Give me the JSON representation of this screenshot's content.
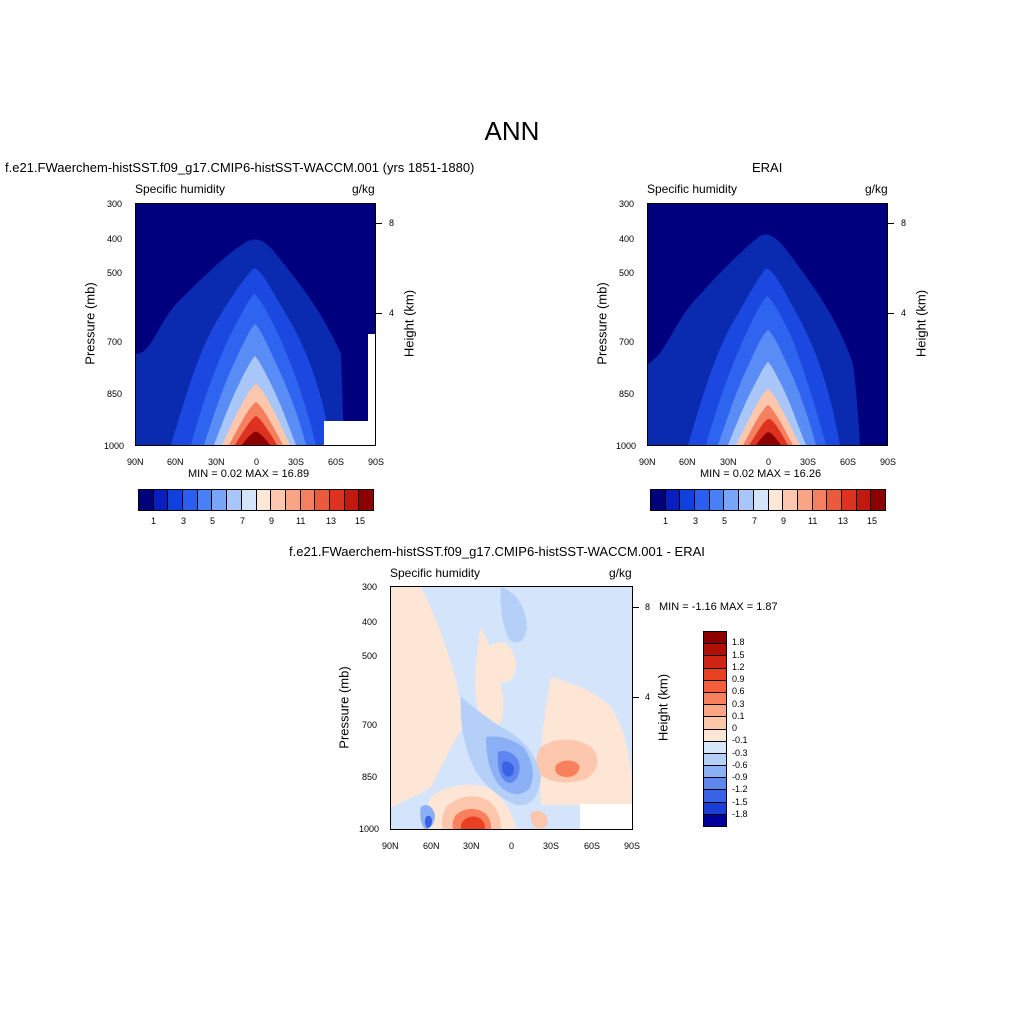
{
  "title": "ANN",
  "axis": {
    "variable": "Specific humidity",
    "units": "g/kg",
    "ylabel": "Pressure (mb)",
    "y2label": "Height (km)",
    "pressure_ticks": [
      "300",
      "400",
      "500",
      "700",
      "850",
      "1000"
    ],
    "height_ticks": [
      "8",
      "4"
    ],
    "lat_ticks": [
      "90N",
      "60N",
      "30N",
      "0",
      "30S",
      "60S",
      "90S"
    ]
  },
  "panels": {
    "model": {
      "title": "f.e21.FWaerchem-histSST.f09_g17.CMIP6-histSST-WACCM.001 (yrs 1851-1880)",
      "stats": "MIN =   0.02  MAX =  16.89"
    },
    "obs": {
      "title": "ERAI",
      "stats": "MIN =   0.02  MAX =  16.26"
    },
    "diff": {
      "title": "f.e21.FWaerchem-histSST.f09_g17.CMIP6-histSST-WACCM.001 - ERAI",
      "stats": "MIN =  -1.16  MAX =   1.87"
    }
  },
  "colorbars": {
    "main": {
      "labels": [
        "1",
        "3",
        "5",
        "7",
        "9",
        "11",
        "13",
        "15"
      ],
      "colors": [
        "#00007f",
        "#0a1fbf",
        "#1040e0",
        "#2a5ef0",
        "#4a80f5",
        "#7aa4f7",
        "#a8c6f8",
        "#d4e4fb",
        "#fde7d7",
        "#fcc7ad",
        "#f9a585",
        "#f4805f",
        "#ec5a3c",
        "#de3220",
        "#c01a10",
        "#8c0000"
      ]
    },
    "diff": {
      "labels": [
        "1.8",
        "1.5",
        "1.2",
        "0.9",
        "0.6",
        "0.3",
        "0.1",
        "0",
        "-0.1",
        "-0.3",
        "-0.6",
        "-0.9",
        "-1.2",
        "-1.5",
        "-1.8"
      ],
      "colors": [
        "#8c0000",
        "#b01008",
        "#d02414",
        "#e84020",
        "#f45e3a",
        "#f8805c",
        "#fba582",
        "#fdc8aa",
        "#fde6d6",
        "#d8e8fb",
        "#b4cff8",
        "#8cb0f5",
        "#5e86ef",
        "#3a62e6",
        "#1a3ed8",
        "#00009a"
      ]
    }
  },
  "chart_data": [
    {
      "type": "heatmap",
      "title": "f.e21.FWaerchem-histSST.f09_g17.CMIP6-histSST-WACCM.001 (yrs 1851-1880)",
      "xlabel": "",
      "ylabel": "Pressure (mb)",
      "x_ticks": [
        "90N",
        "60N",
        "30N",
        "0",
        "30S",
        "60S",
        "90S"
      ],
      "y_ticks": [
        300,
        400,
        500,
        700,
        850,
        1000
      ],
      "levels": [
        1,
        2,
        3,
        4,
        5,
        6,
        7,
        8,
        9,
        10,
        11,
        12,
        13,
        14,
        15
      ],
      "min": 0.02,
      "max": 16.89
    },
    {
      "type": "heatmap",
      "title": "ERAI",
      "xlabel": "",
      "ylabel": "Pressure (mb)",
      "x_ticks": [
        "90N",
        "60N",
        "30N",
        "0",
        "30S",
        "60S",
        "90S"
      ],
      "y_ticks": [
        300,
        400,
        500,
        700,
        850,
        1000
      ],
      "levels": [
        1,
        2,
        3,
        4,
        5,
        6,
        7,
        8,
        9,
        10,
        11,
        12,
        13,
        14,
        15
      ],
      "min": 0.02,
      "max": 16.26
    },
    {
      "type": "heatmap",
      "title": "f.e21.FWaerchem-histSST.f09_g17.CMIP6-histSST-WACCM.001 - ERAI",
      "xlabel": "",
      "ylabel": "Pressure (mb)",
      "x_ticks": [
        "90N",
        "60N",
        "30N",
        "0",
        "30S",
        "60S",
        "90S"
      ],
      "y_ticks": [
        300,
        400,
        500,
        700,
        850,
        1000
      ],
      "levels": [
        -1.8,
        -1.5,
        -1.2,
        -0.9,
        -0.6,
        -0.3,
        -0.1,
        0,
        0.1,
        0.3,
        0.6,
        0.9,
        1.2,
        1.5,
        1.8
      ],
      "min": -1.16,
      "max": 1.87
    }
  ]
}
